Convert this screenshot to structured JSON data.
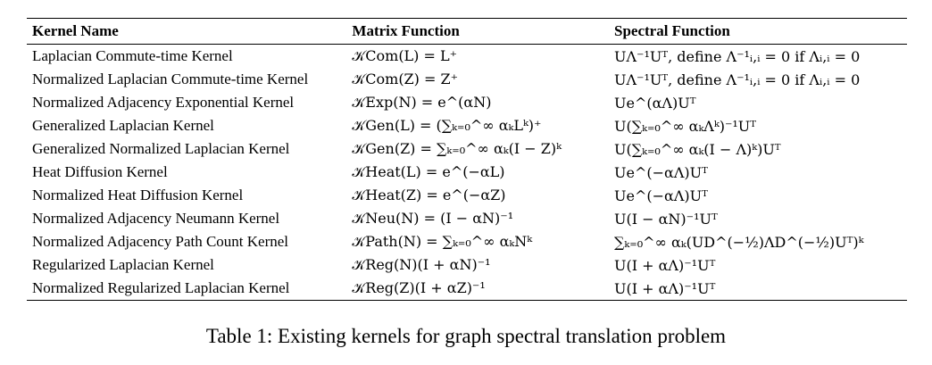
{
  "table": {
    "headers": [
      "Kernel Name",
      "Matrix Function",
      "Spectral Function"
    ],
    "rows": [
      {
        "name": "Laplacian Commute-time Kernel",
        "matrix": "𝒦Com(L) = L⁺",
        "spectral": "UΛ⁻¹Uᵀ, define Λ⁻¹ᵢ,ᵢ = 0 if Λᵢ,ᵢ = 0"
      },
      {
        "name": "Normalized Laplacian Commute-time Kernel",
        "matrix": "𝒦Com(Z) = Z⁺",
        "spectral": "UΛ⁻¹Uᵀ, define Λ⁻¹ᵢ,ᵢ = 0 if Λᵢ,ᵢ = 0"
      },
      {
        "name": "Normalized Adjacency Exponential Kernel",
        "matrix": "𝒦Exp(N) = e^(αN)",
        "spectral": "Ue^(αΛ)Uᵀ"
      },
      {
        "name": "Generalized Laplacian Kernel",
        "matrix": "𝒦Gen(L) = (∑ₖ₌₀^∞ αₖLᵏ)⁺",
        "spectral": "U(∑ₖ₌₀^∞ αₖΛᵏ)⁻¹Uᵀ"
      },
      {
        "name": "Generalized Normalized Laplacian Kernel",
        "matrix": "𝒦Gen(Z) = ∑ₖ₌₀^∞ αₖ(I − Z)ᵏ",
        "spectral": "U(∑ₖ₌₀^∞ αₖ(I − Λ)ᵏ)Uᵀ"
      },
      {
        "name": "Heat Diffusion Kernel",
        "matrix": "𝒦Heat(L) = e^(−αL)",
        "spectral": "Ue^(−αΛ)Uᵀ"
      },
      {
        "name": "Normalized Heat Diffusion Kernel",
        "matrix": "𝒦Heat(Z) = e^(−αZ)",
        "spectral": "Ue^(−αΛ)Uᵀ"
      },
      {
        "name": "Normalized Adjacency Neumann Kernel",
        "matrix": "𝒦Neu(N) = (I − αN)⁻¹",
        "spectral": "U(I − αN)⁻¹Uᵀ"
      },
      {
        "name": "Normalized Adjacency Path Count Kernel",
        "matrix": "𝒦Path(N) = ∑ₖ₌₀^∞ αₖNᵏ",
        "spectral": "∑ₖ₌₀^∞ αₖ(UD^(−½)ΛD^(−½)Uᵀ)ᵏ"
      },
      {
        "name": "Regularized Laplacian Kernel",
        "matrix": "𝒦Reg(N)(I + αN)⁻¹",
        "spectral": "U(I + αΛ)⁻¹Uᵀ"
      },
      {
        "name": "Normalized Regularized Laplacian Kernel",
        "matrix": "𝒦Reg(Z)(I + αZ)⁻¹",
        "spectral": "U(I + αΛ)⁻¹Uᵀ"
      }
    ]
  },
  "caption": "Table 1: Existing kernels for graph spectral translation problem"
}
